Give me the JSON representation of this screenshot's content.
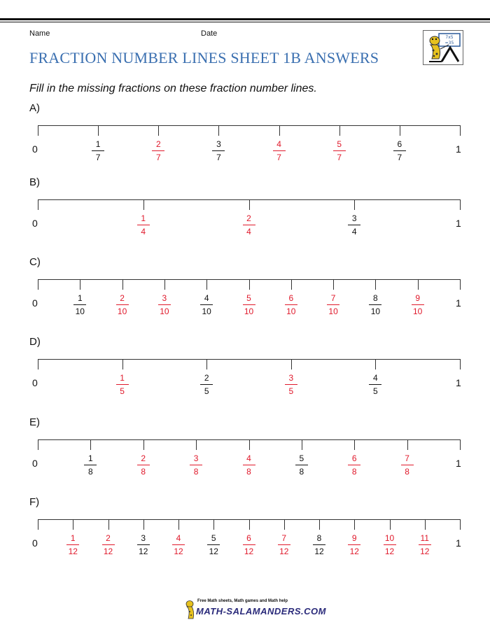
{
  "header": {
    "name_label": "Name",
    "date_label": "Date"
  },
  "title": "FRACTION NUMBER LINES SHEET 1B ANSWERS",
  "instructions": "Fill in the missing fractions on these fraction number lines.",
  "colors": {
    "title": "#3a6fb0",
    "answer": "#e0192b",
    "given": "#111111"
  },
  "sections": [
    {
      "label": "A)",
      "start": "0",
      "end": "1",
      "denominator": "7",
      "ticks": [
        {
          "num": "1",
          "den": "7",
          "answer": false
        },
        {
          "num": "2",
          "den": "7",
          "answer": true
        },
        {
          "num": "3",
          "den": "7",
          "answer": false
        },
        {
          "num": "4",
          "den": "7",
          "answer": true
        },
        {
          "num": "5",
          "den": "7",
          "answer": true
        },
        {
          "num": "6",
          "den": "7",
          "answer": false
        }
      ]
    },
    {
      "label": "B)",
      "start": "0",
      "end": "1",
      "denominator": "4",
      "ticks": [
        {
          "num": "1",
          "den": "4",
          "answer": true
        },
        {
          "num": "2",
          "den": "4",
          "answer": true
        },
        {
          "num": "3",
          "den": "4",
          "answer": false
        }
      ]
    },
    {
      "label": "C)",
      "start": "0",
      "end": "1",
      "denominator": "10",
      "ticks": [
        {
          "num": "1",
          "den": "10",
          "answer": false
        },
        {
          "num": "2",
          "den": "10",
          "answer": true
        },
        {
          "num": "3",
          "den": "10",
          "answer": true
        },
        {
          "num": "4",
          "den": "10",
          "answer": false
        },
        {
          "num": "5",
          "den": "10",
          "answer": true
        },
        {
          "num": "6",
          "den": "10",
          "answer": true
        },
        {
          "num": "7",
          "den": "10",
          "answer": true
        },
        {
          "num": "8",
          "den": "10",
          "answer": false
        },
        {
          "num": "9",
          "den": "10",
          "answer": true
        }
      ]
    },
    {
      "label": "D)",
      "start": "0",
      "end": "1",
      "denominator": "5",
      "ticks": [
        {
          "num": "1",
          "den": "5",
          "answer": true
        },
        {
          "num": "2",
          "den": "5",
          "answer": false
        },
        {
          "num": "3",
          "den": "5",
          "answer": true
        },
        {
          "num": "4",
          "den": "5",
          "answer": false
        }
      ]
    },
    {
      "label": "E)",
      "start": "0",
      "end": "1",
      "denominator": "8",
      "ticks": [
        {
          "num": "1",
          "den": "8",
          "answer": false
        },
        {
          "num": "2",
          "den": "8",
          "answer": true
        },
        {
          "num": "3",
          "den": "8",
          "answer": true
        },
        {
          "num": "4",
          "den": "8",
          "answer": true
        },
        {
          "num": "5",
          "den": "8",
          "answer": false
        },
        {
          "num": "6",
          "den": "8",
          "answer": true
        },
        {
          "num": "7",
          "den": "8",
          "answer": true
        }
      ]
    },
    {
      "label": "F)",
      "start": "0",
      "end": "1",
      "denominator": "12",
      "ticks": [
        {
          "num": "1",
          "den": "12",
          "answer": true
        },
        {
          "num": "2",
          "den": "12",
          "answer": true
        },
        {
          "num": "3",
          "den": "12",
          "answer": false
        },
        {
          "num": "4",
          "den": "12",
          "answer": true
        },
        {
          "num": "5",
          "den": "12",
          "answer": false
        },
        {
          "num": "6",
          "den": "12",
          "answer": true
        },
        {
          "num": "7",
          "den": "12",
          "answer": true
        },
        {
          "num": "8",
          "den": "12",
          "answer": false
        },
        {
          "num": "9",
          "den": "12",
          "answer": true
        },
        {
          "num": "10",
          "den": "12",
          "answer": true
        },
        {
          "num": "11",
          "den": "12",
          "answer": true
        }
      ]
    }
  ],
  "logo": {
    "board_text_1": "7x5",
    "board_text_2": "=35",
    "icon": "salamander-teacher-icon"
  },
  "footer": {
    "tagline": "Free Math sheets, Math games and Math help",
    "site": "MATH-SALAMANDERS.COM",
    "icon": "salamander-icon"
  }
}
